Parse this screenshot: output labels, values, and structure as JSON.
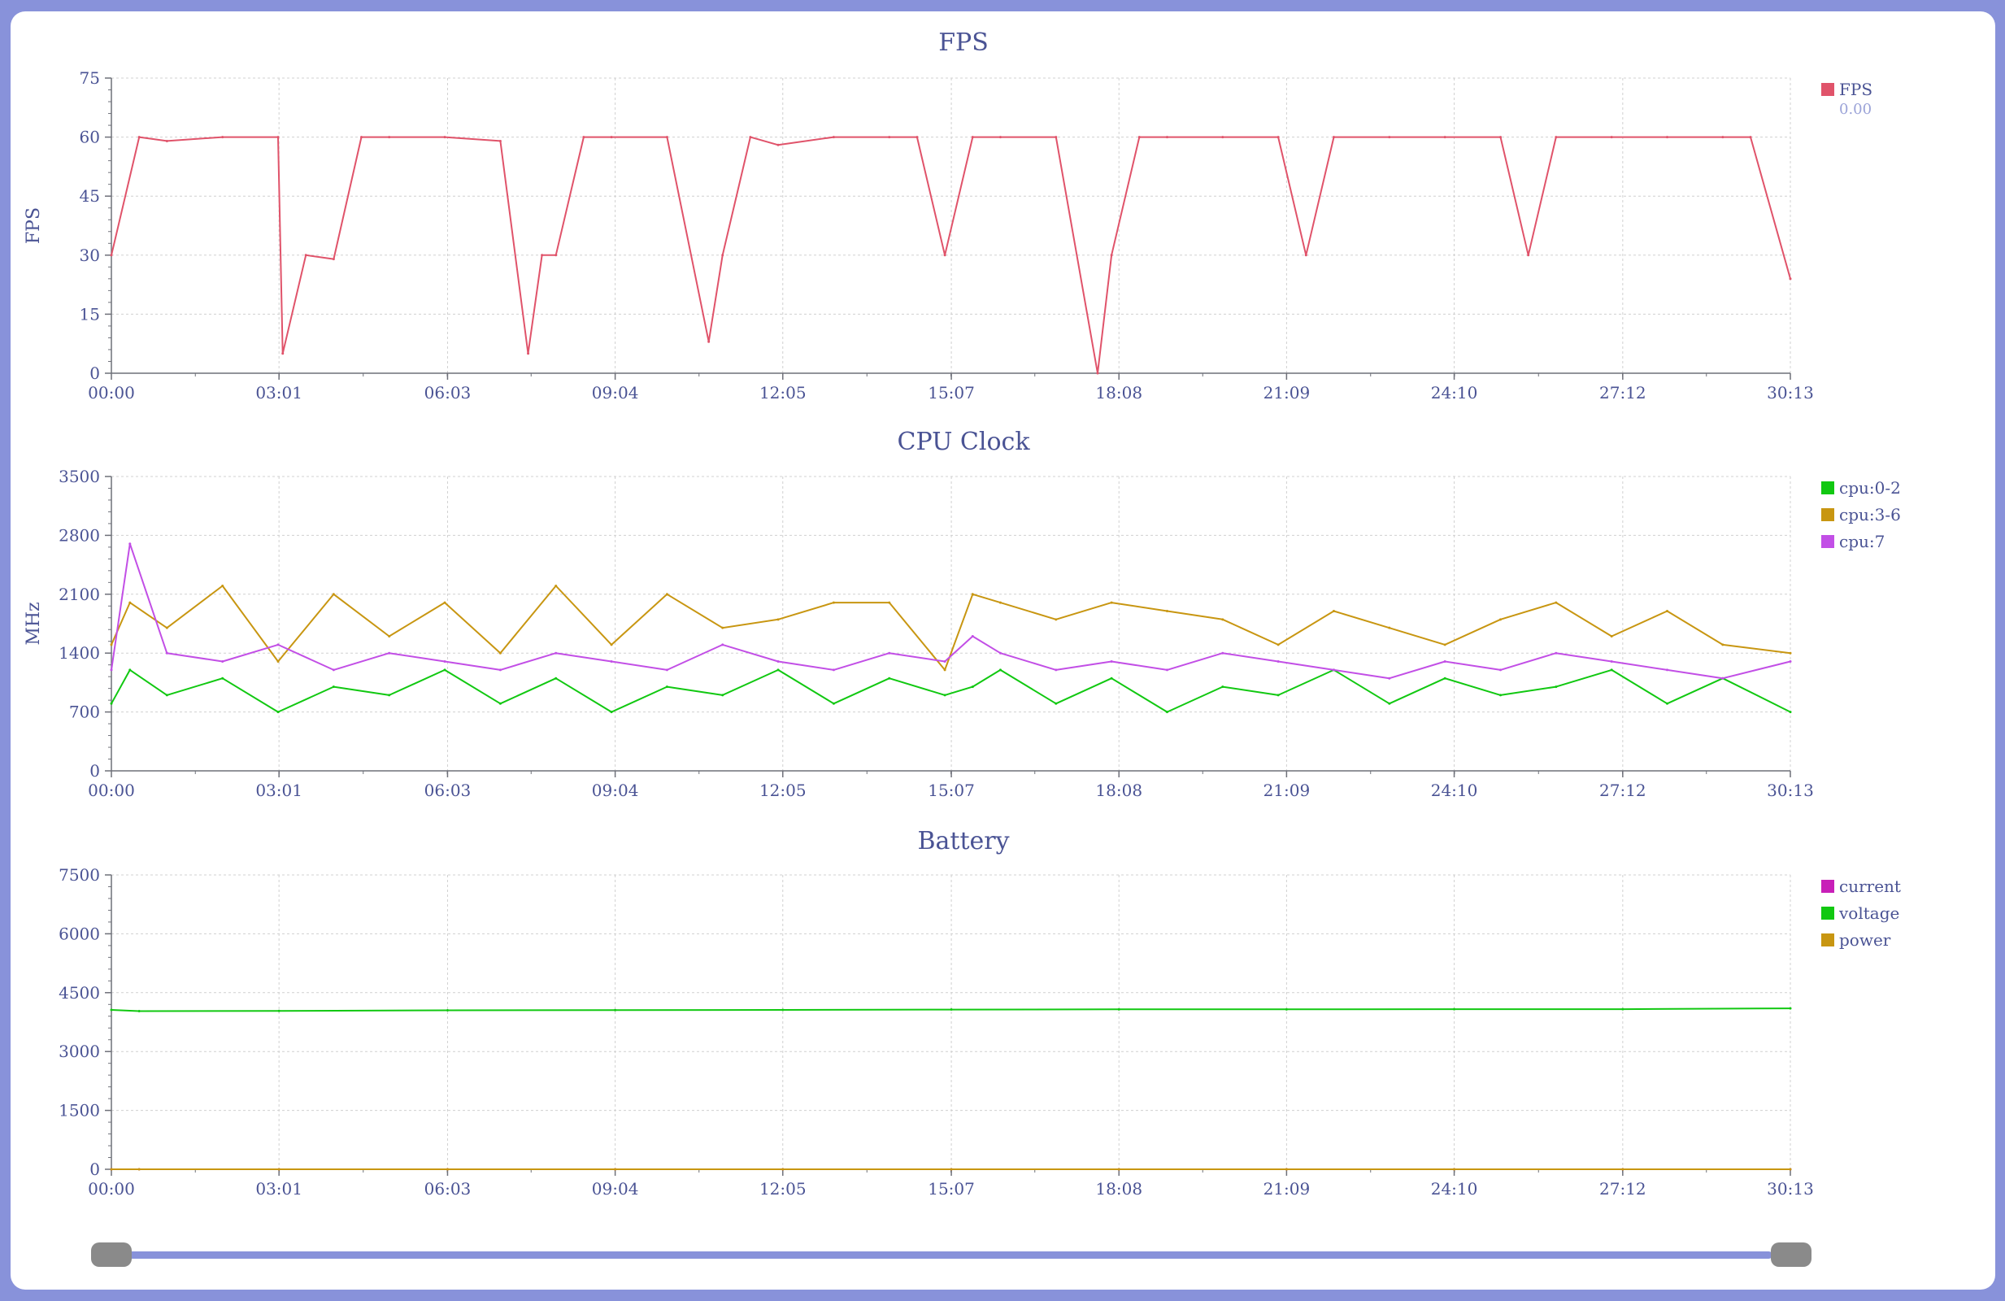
{
  "colors": {
    "background": "#8892da",
    "panel": "#ffffff",
    "axis": "#6e7079",
    "text": "#4a5394",
    "grid": "#d0d0d0",
    "fps": "#e0536a",
    "cpu_0_2": "#11c811",
    "cpu_3_6": "#c89611",
    "cpu_7": "#c24fe6",
    "current": "#c81fb8",
    "voltage": "#11c811",
    "power": "#c89611"
  },
  "time_ticks": [
    "00:00",
    "03:01",
    "06:03",
    "09:04",
    "12:05",
    "15:07",
    "18:08",
    "21:09",
    "24:10",
    "27:12",
    "30:13"
  ],
  "chart_data": [
    {
      "type": "line",
      "title": "FPS",
      "ylabel": "FPS",
      "xlabel": "",
      "ylim": [
        0,
        75
      ],
      "yticks": [
        0,
        15,
        30,
        45,
        60,
        75
      ],
      "legend_position": "right",
      "legend_value": "0.00",
      "x": [
        "00:00",
        "00:30",
        "01:00",
        "02:00",
        "03:00",
        "03:05",
        "03:30",
        "04:00",
        "04:30",
        "05:00",
        "06:00",
        "07:00",
        "07:30",
        "07:45",
        "08:00",
        "08:30",
        "09:00",
        "10:00",
        "10:45",
        "11:00",
        "11:30",
        "12:00",
        "13:00",
        "14:00",
        "14:30",
        "15:00",
        "15:30",
        "16:00",
        "17:00",
        "17:45",
        "18:00",
        "18:30",
        "19:00",
        "20:00",
        "21:00",
        "21:30",
        "22:00",
        "23:00",
        "24:00",
        "25:00",
        "25:30",
        "26:00",
        "27:00",
        "28:00",
        "29:00",
        "29:30",
        "30:13"
      ],
      "series": [
        {
          "name": "FPS",
          "values": [
            30,
            60,
            59,
            60,
            60,
            5,
            30,
            29,
            60,
            60,
            60,
            59,
            5,
            30,
            30,
            60,
            60,
            60,
            8,
            30,
            60,
            58,
            60,
            60,
            60,
            30,
            60,
            60,
            60,
            0,
            30,
            60,
            60,
            60,
            60,
            30,
            60,
            60,
            60,
            60,
            30,
            60,
            60,
            60,
            60,
            60,
            24
          ]
        }
      ]
    },
    {
      "type": "line",
      "title": "CPU Clock",
      "ylabel": "MHz",
      "xlabel": "",
      "ylim": [
        0,
        3500
      ],
      "yticks": [
        0,
        700,
        1400,
        2100,
        2800,
        3500
      ],
      "legend_position": "right",
      "x": [
        "00:00",
        "00:20",
        "01:00",
        "02:00",
        "03:00",
        "04:00",
        "05:00",
        "06:00",
        "07:00",
        "08:00",
        "09:00",
        "10:00",
        "11:00",
        "12:00",
        "13:00",
        "14:00",
        "15:00",
        "15:30",
        "16:00",
        "17:00",
        "18:00",
        "19:00",
        "20:00",
        "21:00",
        "22:00",
        "23:00",
        "24:00",
        "25:00",
        "26:00",
        "27:00",
        "28:00",
        "29:00",
        "30:13"
      ],
      "series": [
        {
          "name": "cpu:0-2",
          "values": [
            800,
            1200,
            900,
            1100,
            700,
            1000,
            900,
            1200,
            800,
            1100,
            700,
            1000,
            900,
            1200,
            800,
            1100,
            900,
            1000,
            1200,
            800,
            1100,
            700,
            1000,
            900,
            1200,
            800,
            1100,
            900,
            1000,
            1200,
            800,
            1100,
            700
          ]
        },
        {
          "name": "cpu:3-6",
          "values": [
            1500,
            2000,
            1700,
            2200,
            1300,
            2100,
            1600,
            2000,
            1400,
            2200,
            1500,
            2100,
            1700,
            1800,
            2000,
            2000,
            1200,
            2100,
            2000,
            1800,
            2000,
            1900,
            1800,
            1500,
            1900,
            1700,
            1500,
            1800,
            2000,
            1600,
            1900,
            1500,
            1400
          ]
        },
        {
          "name": "cpu:7",
          "values": [
            1200,
            2700,
            1400,
            1300,
            1500,
            1200,
            1400,
            1300,
            1200,
            1400,
            1300,
            1200,
            1500,
            1300,
            1200,
            1400,
            1300,
            1600,
            1400,
            1200,
            1300,
            1200,
            1400,
            1300,
            1200,
            1100,
            1300,
            1200,
            1400,
            1300,
            1200,
            1100,
            1300
          ]
        }
      ]
    },
    {
      "type": "line",
      "title": "Battery",
      "ylabel": "",
      "xlabel": "",
      "ylim": [
        0,
        7500
      ],
      "yticks": [
        0,
        1500,
        3000,
        4500,
        6000,
        7500
      ],
      "legend_position": "right",
      "x": [
        "00:00",
        "00:30",
        "03:01",
        "06:03",
        "09:04",
        "12:05",
        "15:07",
        "18:08",
        "21:09",
        "24:10",
        "27:12",
        "30:13"
      ],
      "series": [
        {
          "name": "current",
          "values": [
            0,
            0,
            0,
            0,
            0,
            0,
            0,
            0,
            0,
            0,
            0,
            0
          ]
        },
        {
          "name": "voltage",
          "values": [
            4060,
            4030,
            4035,
            4050,
            4055,
            4060,
            4070,
            4075,
            4075,
            4080,
            4080,
            4100
          ]
        },
        {
          "name": "power",
          "values": [
            0,
            0,
            0,
            0,
            0,
            0,
            0,
            0,
            0,
            0,
            0,
            0
          ]
        }
      ]
    }
  ]
}
